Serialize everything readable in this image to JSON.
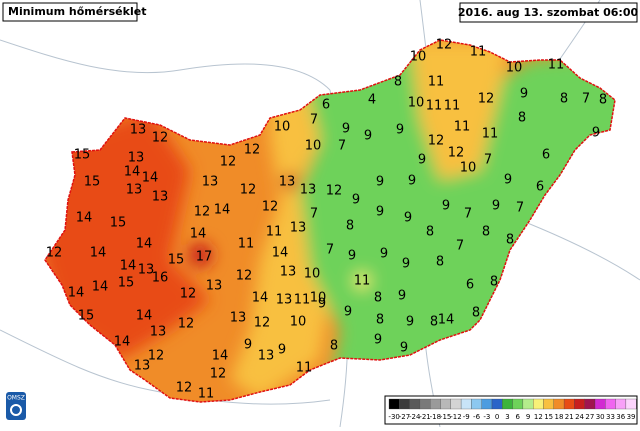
{
  "header": {
    "title": "Minimum hőmérséklet",
    "timestamp": "2016. aug 13. szombat 06:00"
  },
  "stations": [
    12,
    11,
    10,
    10,
    11,
    8,
    11,
    6,
    4,
    10,
    11,
    11,
    12,
    9,
    8,
    7,
    8,
    10,
    7,
    9,
    9,
    9,
    11,
    11,
    8,
    9,
    13,
    12,
    15,
    13,
    14,
    14,
    12,
    10,
    7,
    12,
    9,
    12,
    7,
    6,
    15,
    13,
    12,
    13,
    13,
    12,
    9,
    9,
    9,
    10,
    9,
    6,
    13,
    12,
    14,
    15,
    13,
    12,
    14,
    12,
    7,
    8,
    9,
    9,
    9,
    7,
    9,
    7,
    14,
    14,
    11,
    11,
    13,
    8,
    8,
    12,
    14,
    15,
    17,
    14,
    7,
    9,
    9,
    7,
    8,
    14,
    13,
    16,
    12,
    13,
    10,
    11,
    9,
    8,
    14,
    14,
    15,
    12,
    13,
    14,
    13,
    11,
    10,
    9,
    8,
    9,
    6,
    8,
    15,
    14,
    12,
    13,
    12,
    10,
    9,
    8,
    9,
    8,
    8,
    14,
    13,
    9,
    13,
    9,
    8,
    9,
    9,
    14,
    13,
    12,
    14,
    12,
    11,
    12,
    11
  ],
  "legend": {
    "ticks": [
      -30,
      -27,
      -24,
      -21,
      -18,
      -15,
      -12,
      -9,
      -6,
      -3,
      0,
      3,
      6,
      9,
      12,
      15,
      18,
      21,
      24,
      27,
      30,
      33,
      36,
      39
    ],
    "colors": [
      "#000000",
      "#3a3a3a",
      "#5a5a5a",
      "#7a7a7a",
      "#9a9a9a",
      "#b8b8b8",
      "#d4d4d4",
      "#c8e4f8",
      "#8cc8f0",
      "#4c9ce0",
      "#2a64c8",
      "#3cb43c",
      "#6ed25a",
      "#b4ec8c",
      "#f8f078",
      "#f8c040",
      "#f08c28",
      "#e84c14",
      "#c81e1e",
      "#a01450",
      "#d22ad2",
      "#f064f0",
      "#f8a0f8",
      "#fcd4fc"
    ]
  },
  "logo": "OMSZ"
}
